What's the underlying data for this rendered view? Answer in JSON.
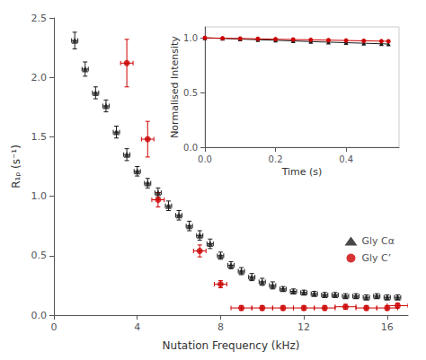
{
  "chart_data": [
    {
      "type": "scatter",
      "xlabel": "Nutation Frequency (kHz)",
      "ylabel": "R₁ᵨ (s⁻¹)",
      "xlim": [
        0,
        17
      ],
      "ylim": [
        0,
        2.5
      ],
      "xticks": [
        0,
        4,
        8,
        12,
        16
      ],
      "yticks": [
        {
          "value": 0,
          "label": "0.0"
        },
        0.5,
        {
          "value": 1,
          "label": "1.0"
        },
        1.5,
        {
          "value": 2,
          "label": "2.0"
        },
        2.5
      ],
      "grid": false,
      "legend": "lower right",
      "series": [
        {
          "name": "Gly Cα",
          "color": "#1a1a1a",
          "marker": "triangle",
          "x": [
            1.0,
            1.5,
            2.0,
            2.5,
            3.0,
            3.5,
            4.0,
            4.5,
            5.0,
            5.5,
            6.0,
            6.5,
            7.0,
            7.5,
            8.0,
            8.5,
            9.0,
            9.5,
            10.0,
            10.5,
            11.0,
            11.5,
            12.0,
            12.5,
            13.0,
            13.5,
            14.0,
            14.5,
            15.0,
            15.5,
            16.0,
            16.5
          ],
          "values": [
            2.31,
            2.07,
            1.87,
            1.76,
            1.54,
            1.35,
            1.21,
            1.11,
            1.03,
            0.92,
            0.84,
            0.75,
            0.67,
            0.6,
            0.5,
            0.42,
            0.37,
            0.32,
            0.28,
            0.25,
            0.22,
            0.2,
            0.19,
            0.18,
            0.17,
            0.17,
            0.16,
            0.16,
            0.15,
            0.16,
            0.15,
            0.15
          ],
          "xerr": [
            0.15,
            0.15,
            0.15,
            0.15,
            0.15,
            0.15,
            0.15,
            0.15,
            0.15,
            0.15,
            0.15,
            0.15,
            0.15,
            0.15,
            0.15,
            0.15,
            0.15,
            0.15,
            0.15,
            0.15,
            0.15,
            0.15,
            0.15,
            0.15,
            0.15,
            0.15,
            0.15,
            0.15,
            0.15,
            0.15,
            0.15,
            0.15
          ],
          "yerr": [
            0.07,
            0.06,
            0.05,
            0.05,
            0.05,
            0.05,
            0.04,
            0.04,
            0.04,
            0.04,
            0.04,
            0.04,
            0.04,
            0.04,
            0.03,
            0.03,
            0.03,
            0.03,
            0.03,
            0.03,
            0.02,
            0.02,
            0.02,
            0.02,
            0.02,
            0.02,
            0.02,
            0.02,
            0.02,
            0.02,
            0.02,
            0.02
          ]
        },
        {
          "name": "Gly C’",
          "color": "#cc0000",
          "marker": "circle",
          "x": [
            3.5,
            4.5,
            5.0,
            7.0,
            8.0,
            9.0,
            10.0,
            11.0,
            12.0,
            13.0,
            14.0,
            15.0,
            16.0,
            16.5
          ],
          "values": [
            2.12,
            1.48,
            0.97,
            0.54,
            0.26,
            0.06,
            0.06,
            0.06,
            0.06,
            0.06,
            0.07,
            0.06,
            0.06,
            0.08
          ],
          "xerr": [
            0.3,
            0.3,
            0.3,
            0.3,
            0.3,
            0.5,
            0.5,
            0.5,
            0.5,
            0.5,
            0.5,
            0.5,
            0.5,
            0.5
          ],
          "yerr": [
            0.2,
            0.15,
            0.06,
            0.05,
            0.03,
            0.02,
            0.02,
            0.02,
            0.02,
            0.02,
            0.02,
            0.02,
            0.02,
            0.02
          ]
        }
      ]
    },
    {
      "type": "line",
      "xlabel": "Time (s)",
      "ylabel": "Normalised Intensity",
      "xlim": [
        0.0,
        0.55
      ],
      "ylim": [
        0.0,
        1.1
      ],
      "xticks": [
        {
          "value": 0,
          "label": "0.0"
        },
        0.2,
        0.4
      ],
      "yticks": [
        {
          "value": 0,
          "label": "0.0"
        },
        0.5,
        {
          "value": 1,
          "label": "1.0"
        }
      ],
      "grid": false,
      "series": [
        {
          "color": "#1a1a1a",
          "marker": "triangle",
          "x": [
            0.0,
            0.05,
            0.1,
            0.15,
            0.2,
            0.25,
            0.3,
            0.35,
            0.4,
            0.45,
            0.5,
            0.52
          ],
          "values": [
            1.0,
            0.995,
            0.989,
            0.983,
            0.978,
            0.972,
            0.966,
            0.961,
            0.956,
            0.951,
            0.946,
            0.944
          ]
        },
        {
          "color": "#cc0000",
          "marker": "circle",
          "x": [
            0.0,
            0.05,
            0.1,
            0.15,
            0.2,
            0.25,
            0.3,
            0.35,
            0.4,
            0.45,
            0.5,
            0.52
          ],
          "values": [
            1.0,
            0.997,
            0.994,
            0.991,
            0.988,
            0.985,
            0.982,
            0.979,
            0.976,
            0.973,
            0.97,
            0.969
          ]
        }
      ]
    }
  ]
}
